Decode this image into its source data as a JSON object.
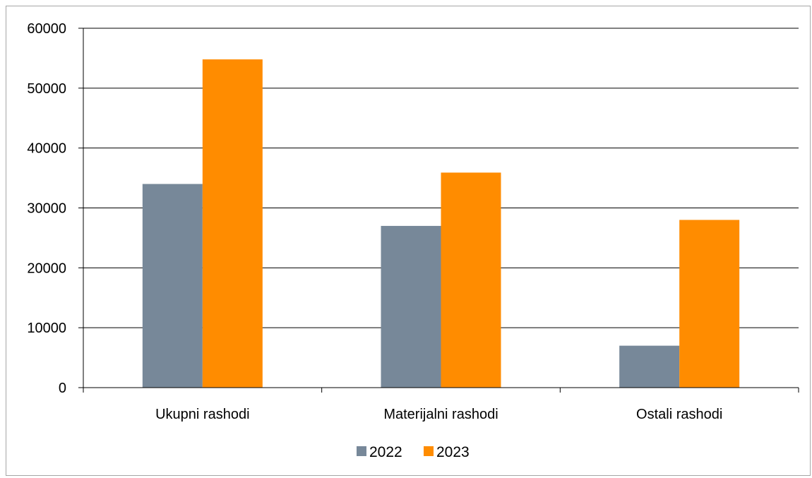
{
  "chart_data": {
    "type": "bar",
    "categories": [
      "Ukupni rashodi",
      "Materijalni rashodi",
      "Ostali rashodi"
    ],
    "series": [
      {
        "name": "2022",
        "color": "#778899",
        "values": [
          34000,
          27000,
          7000
        ]
      },
      {
        "name": "2023",
        "color": "#ff8c00",
        "values": [
          54800,
          35900,
          28000
        ]
      }
    ],
    "ylim": [
      0,
      60000
    ],
    "yticks": [
      0,
      10000,
      20000,
      30000,
      40000,
      50000,
      60000
    ],
    "grid": true,
    "legend_position": "bottom-center",
    "title": "",
    "xlabel": "",
    "ylabel": ""
  }
}
